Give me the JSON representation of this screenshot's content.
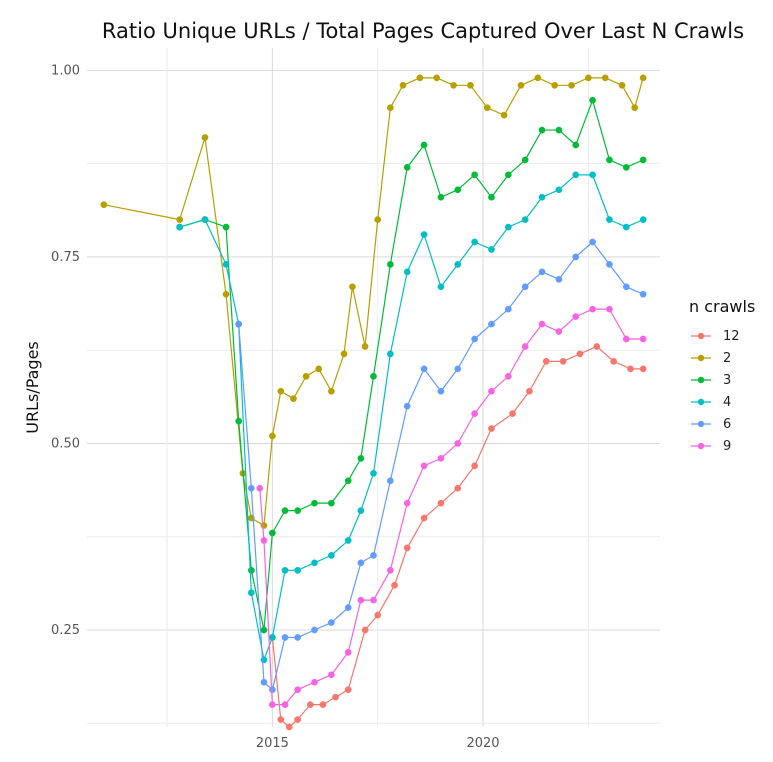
{
  "chart_data": {
    "type": "line",
    "title": "Ratio Unique URLs / Total Pages Captured Over Last N Crawls",
    "xlabel": "",
    "ylabel": "URLs/Pages",
    "xlim": [
      2010.6,
      2024.2
    ],
    "ylim": [
      0.12,
      1.03
    ],
    "x_ticks": [
      2015,
      2020
    ],
    "x_tick_labels": [
      "2015",
      "2020"
    ],
    "y_ticks": [
      0.25,
      0.5,
      0.75,
      1.0
    ],
    "y_tick_labels": [
      "0.25",
      "0.50",
      "0.75",
      "1.00"
    ],
    "grid": true,
    "legend": {
      "title": "n crawls",
      "position": "right"
    },
    "series": [
      {
        "name": "12",
        "color": "#F8766D",
        "points": [
          [
            2015.0,
            0.24
          ],
          [
            2015.2,
            0.13
          ],
          [
            2015.4,
            0.12
          ],
          [
            2015.6,
            0.13
          ],
          [
            2015.9,
            0.15
          ],
          [
            2016.2,
            0.15
          ],
          [
            2016.5,
            0.16
          ],
          [
            2016.8,
            0.17
          ],
          [
            2017.2,
            0.25
          ],
          [
            2017.5,
            0.27
          ],
          [
            2017.9,
            0.31
          ],
          [
            2018.2,
            0.36
          ],
          [
            2018.6,
            0.4
          ],
          [
            2019.0,
            0.42
          ],
          [
            2019.4,
            0.44
          ],
          [
            2019.8,
            0.47
          ],
          [
            2020.2,
            0.52
          ],
          [
            2020.7,
            0.54
          ],
          [
            2021.1,
            0.57
          ],
          [
            2021.5,
            0.61
          ],
          [
            2021.9,
            0.61
          ],
          [
            2022.3,
            0.62
          ],
          [
            2022.7,
            0.63
          ],
          [
            2023.1,
            0.61
          ],
          [
            2023.5,
            0.6
          ],
          [
            2023.8,
            0.6
          ]
        ]
      },
      {
        "name": "2",
        "color": "#B79F00",
        "points": [
          [
            2011.0,
            0.82
          ],
          [
            2012.8,
            0.8
          ],
          [
            2013.4,
            0.91
          ],
          [
            2013.9,
            0.7
          ],
          [
            2014.3,
            0.46
          ],
          [
            2014.5,
            0.4
          ],
          [
            2014.8,
            0.39
          ],
          [
            2015.0,
            0.51
          ],
          [
            2015.2,
            0.57
          ],
          [
            2015.5,
            0.56
          ],
          [
            2015.8,
            0.59
          ],
          [
            2016.1,
            0.6
          ],
          [
            2016.4,
            0.57
          ],
          [
            2016.7,
            0.62
          ],
          [
            2016.9,
            0.71
          ],
          [
            2017.2,
            0.63
          ],
          [
            2017.5,
            0.8
          ],
          [
            2017.8,
            0.95
          ],
          [
            2018.1,
            0.98
          ],
          [
            2018.5,
            0.99
          ],
          [
            2018.9,
            0.99
          ],
          [
            2019.3,
            0.98
          ],
          [
            2019.7,
            0.98
          ],
          [
            2020.1,
            0.95
          ],
          [
            2020.5,
            0.94
          ],
          [
            2020.9,
            0.98
          ],
          [
            2021.3,
            0.99
          ],
          [
            2021.7,
            0.98
          ],
          [
            2022.1,
            0.98
          ],
          [
            2022.5,
            0.99
          ],
          [
            2022.9,
            0.99
          ],
          [
            2023.3,
            0.98
          ],
          [
            2023.6,
            0.95
          ],
          [
            2023.8,
            0.99
          ]
        ]
      },
      {
        "name": "3",
        "color": "#00BA38",
        "points": [
          [
            2012.8,
            0.79
          ],
          [
            2013.4,
            0.8
          ],
          [
            2013.9,
            0.79
          ],
          [
            2014.2,
            0.53
          ],
          [
            2014.5,
            0.33
          ],
          [
            2014.8,
            0.25
          ],
          [
            2015.0,
            0.38
          ],
          [
            2015.3,
            0.41
          ],
          [
            2015.6,
            0.41
          ],
          [
            2016.0,
            0.42
          ],
          [
            2016.4,
            0.42
          ],
          [
            2016.8,
            0.45
          ],
          [
            2017.1,
            0.48
          ],
          [
            2017.4,
            0.59
          ],
          [
            2017.8,
            0.74
          ],
          [
            2018.2,
            0.87
          ],
          [
            2018.6,
            0.9
          ],
          [
            2019.0,
            0.83
          ],
          [
            2019.4,
            0.84
          ],
          [
            2019.8,
            0.86
          ],
          [
            2020.2,
            0.83
          ],
          [
            2020.6,
            0.86
          ],
          [
            2021.0,
            0.88
          ],
          [
            2021.4,
            0.92
          ],
          [
            2021.8,
            0.92
          ],
          [
            2022.2,
            0.9
          ],
          [
            2022.6,
            0.96
          ],
          [
            2023.0,
            0.88
          ],
          [
            2023.4,
            0.87
          ],
          [
            2023.8,
            0.88
          ]
        ]
      },
      {
        "name": "4",
        "color": "#00BFC4",
        "points": [
          [
            2012.8,
            0.79
          ],
          [
            2013.4,
            0.8
          ],
          [
            2013.9,
            0.74
          ],
          [
            2014.2,
            0.66
          ],
          [
            2014.5,
            0.3
          ],
          [
            2014.8,
            0.21
          ],
          [
            2015.0,
            0.24
          ],
          [
            2015.3,
            0.33
          ],
          [
            2015.6,
            0.33
          ],
          [
            2016.0,
            0.34
          ],
          [
            2016.4,
            0.35
          ],
          [
            2016.8,
            0.37
          ],
          [
            2017.1,
            0.41
          ],
          [
            2017.4,
            0.46
          ],
          [
            2017.8,
            0.62
          ],
          [
            2018.2,
            0.73
          ],
          [
            2018.6,
            0.78
          ],
          [
            2019.0,
            0.71
          ],
          [
            2019.4,
            0.74
          ],
          [
            2019.8,
            0.77
          ],
          [
            2020.2,
            0.76
          ],
          [
            2020.6,
            0.79
          ],
          [
            2021.0,
            0.8
          ],
          [
            2021.4,
            0.83
          ],
          [
            2021.8,
            0.84
          ],
          [
            2022.2,
            0.86
          ],
          [
            2022.6,
            0.86
          ],
          [
            2023.0,
            0.8
          ],
          [
            2023.4,
            0.79
          ],
          [
            2023.8,
            0.8
          ]
        ]
      },
      {
        "name": "6",
        "color": "#619CFF",
        "points": [
          [
            2014.2,
            0.66
          ],
          [
            2014.5,
            0.44
          ],
          [
            2014.8,
            0.18
          ],
          [
            2015.0,
            0.17
          ],
          [
            2015.3,
            0.24
          ],
          [
            2015.6,
            0.24
          ],
          [
            2016.0,
            0.25
          ],
          [
            2016.4,
            0.26
          ],
          [
            2016.8,
            0.28
          ],
          [
            2017.1,
            0.34
          ],
          [
            2017.4,
            0.35
          ],
          [
            2017.8,
            0.45
          ],
          [
            2018.2,
            0.55
          ],
          [
            2018.6,
            0.6
          ],
          [
            2019.0,
            0.57
          ],
          [
            2019.4,
            0.6
          ],
          [
            2019.8,
            0.64
          ],
          [
            2020.2,
            0.66
          ],
          [
            2020.6,
            0.68
          ],
          [
            2021.0,
            0.71
          ],
          [
            2021.4,
            0.73
          ],
          [
            2021.8,
            0.72
          ],
          [
            2022.2,
            0.75
          ],
          [
            2022.6,
            0.77
          ],
          [
            2023.0,
            0.74
          ],
          [
            2023.4,
            0.71
          ],
          [
            2023.8,
            0.7
          ]
        ]
      },
      {
        "name": "9",
        "color": "#F564E3",
        "points": [
          [
            2014.7,
            0.44
          ],
          [
            2014.8,
            0.37
          ],
          [
            2015.0,
            0.15
          ],
          [
            2015.3,
            0.15
          ],
          [
            2015.6,
            0.17
          ],
          [
            2016.0,
            0.18
          ],
          [
            2016.4,
            0.19
          ],
          [
            2016.8,
            0.22
          ],
          [
            2017.1,
            0.29
          ],
          [
            2017.4,
            0.29
          ],
          [
            2017.8,
            0.33
          ],
          [
            2018.2,
            0.42
          ],
          [
            2018.6,
            0.47
          ],
          [
            2019.0,
            0.48
          ],
          [
            2019.4,
            0.5
          ],
          [
            2019.8,
            0.54
          ],
          [
            2020.2,
            0.57
          ],
          [
            2020.6,
            0.59
          ],
          [
            2021.0,
            0.63
          ],
          [
            2021.4,
            0.66
          ],
          [
            2021.8,
            0.65
          ],
          [
            2022.2,
            0.67
          ],
          [
            2022.6,
            0.68
          ],
          [
            2023.0,
            0.68
          ],
          [
            2023.4,
            0.64
          ],
          [
            2023.8,
            0.64
          ]
        ]
      }
    ]
  }
}
